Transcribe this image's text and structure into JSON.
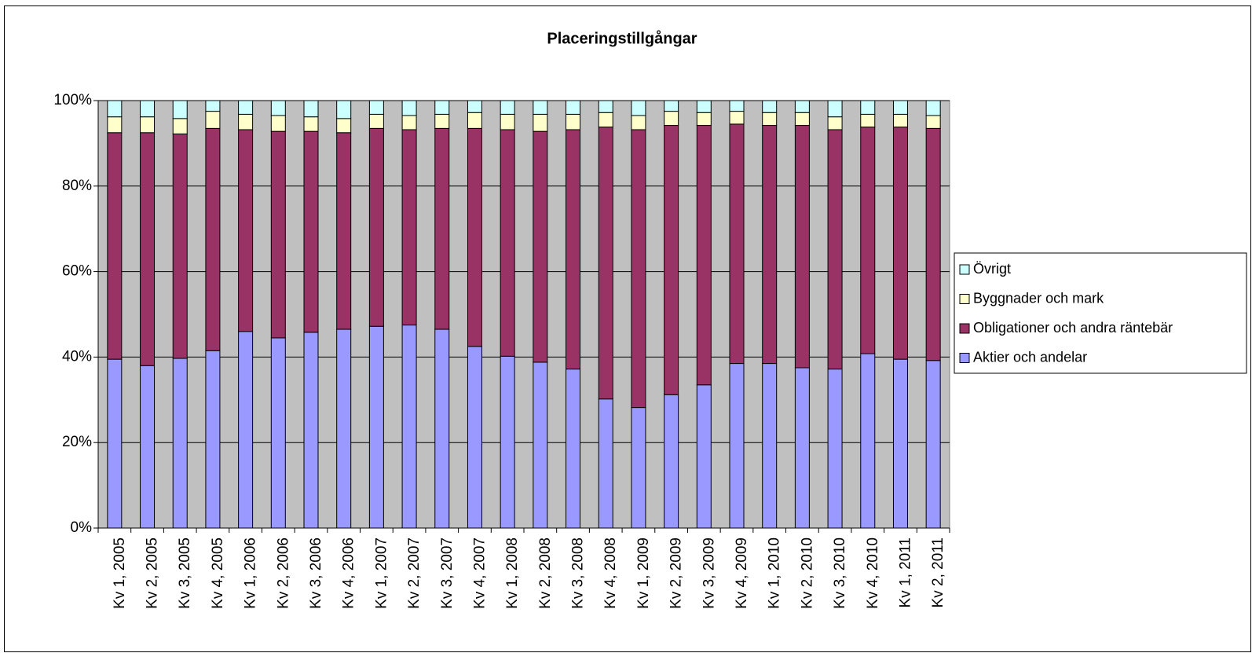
{
  "chart_data": {
    "type": "stacked_bar",
    "title": "Placeringstillgångar",
    "categories": [
      "Kv 1, 2005",
      "Kv 2, 2005",
      "Kv 3, 2005",
      "Kv 4, 2005",
      "Kv 1, 2006",
      "Kv 2, 2006",
      "Kv 3, 2006",
      "Kv 4, 2006",
      "Kv 1, 2007",
      "Kv 2, 2007",
      "Kv 3, 2007",
      "Kv 4, 2007",
      "Kv 1, 2008",
      "Kv 2, 2008",
      "Kv 3, 2008",
      "Kv 4, 2008",
      "Kv 1, 2009",
      "Kv 2, 2009",
      "Kv 3, 2009",
      "Kv 4, 2009",
      "Kv 1, 2010",
      "Kv 2, 2010",
      "Kv 3, 2010",
      "Kv 4, 2010",
      "Kv 1, 2011",
      "Kv 2, 2011"
    ],
    "series": [
      {
        "name": "Aktier och andelar",
        "color": "#9999ff",
        "values": [
          39.5,
          38.0,
          39.7,
          41.5,
          46.0,
          44.5,
          45.8,
          46.5,
          47.2,
          47.5,
          46.5,
          42.5,
          40.2,
          38.8,
          37.2,
          30.2,
          28.2,
          31.2,
          33.5,
          38.5,
          38.5,
          37.5,
          37.2,
          40.8,
          39.5,
          39.2
        ]
      },
      {
        "name": "Obligationer och andra räntebär",
        "color": "#993366",
        "values": [
          53.0,
          54.5,
          52.5,
          52.0,
          47.2,
          48.3,
          47.0,
          46.0,
          46.3,
          45.7,
          47.0,
          51.0,
          53.0,
          54.0,
          56.0,
          63.6,
          65.0,
          63.0,
          60.7,
          56.0,
          55.7,
          56.7,
          56.0,
          53.0,
          54.3,
          54.3
        ]
      },
      {
        "name": "Byggnader och mark",
        "color": "#ffffcc",
        "values": [
          3.7,
          3.7,
          3.6,
          4.0,
          3.6,
          3.7,
          3.4,
          3.3,
          3.3,
          3.3,
          3.3,
          3.7,
          3.6,
          4.0,
          3.6,
          3.4,
          3.3,
          3.3,
          3.0,
          3.0,
          3.0,
          3.0,
          3.0,
          3.0,
          3.0,
          3.0
        ]
      },
      {
        "name": "Övrigt",
        "color": "#ccffff",
        "values": [
          3.8,
          3.8,
          4.2,
          2.5,
          3.2,
          3.5,
          3.8,
          4.2,
          3.2,
          3.5,
          3.2,
          2.8,
          3.2,
          3.2,
          3.2,
          2.8,
          3.5,
          2.5,
          2.8,
          2.5,
          2.8,
          2.8,
          3.8,
          3.2,
          3.2,
          3.5
        ]
      }
    ],
    "ylim": [
      0,
      100
    ],
    "yticks": [
      {
        "value": 0,
        "label": "0%"
      },
      {
        "value": 20,
        "label": "20%"
      },
      {
        "value": 40,
        "label": "40%"
      },
      {
        "value": 60,
        "label": "60%"
      },
      {
        "value": 80,
        "label": "80%"
      },
      {
        "value": 100,
        "label": "100%"
      }
    ],
    "grid": true,
    "plot_background": "#c0c0c0",
    "legend": "right"
  }
}
